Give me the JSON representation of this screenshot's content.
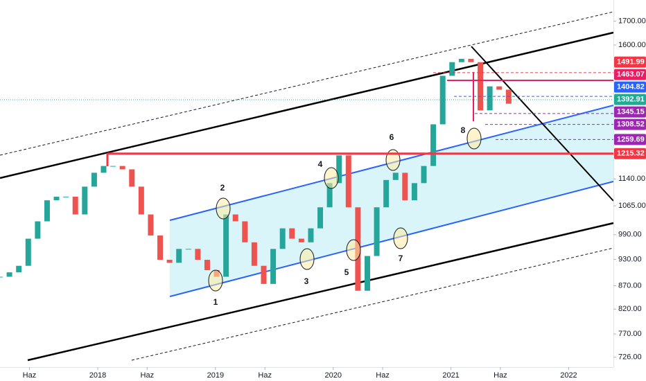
{
  "chart_data": {
    "type": "candlestick",
    "log_scale": true,
    "up_color": "#26a69a",
    "down_color": "#ef5350",
    "x": [
      2017.17,
      2017.25,
      2017.33,
      2017.41,
      2017.49,
      2017.57,
      2017.65,
      2017.73,
      2017.81,
      2017.89,
      2017.97,
      2018.05,
      2018.13,
      2018.21,
      2018.29,
      2018.37,
      2018.45,
      2018.53,
      2018.61,
      2018.69,
      2018.77,
      2018.85,
      2018.93,
      2019.01,
      2019.09,
      2019.17,
      2019.25,
      2019.33,
      2019.41,
      2019.49,
      2019.57,
      2019.65,
      2019.73,
      2019.81,
      2019.89,
      2019.97,
      2020.05,
      2020.13,
      2020.21,
      2020.29,
      2020.37,
      2020.45,
      2020.53,
      2020.61,
      2020.69,
      2020.77,
      2020.85,
      2020.93,
      2021.01,
      2021.09,
      2021.17,
      2021.25,
      2021.33,
      2021.41,
      2021.49
    ],
    "values": [
      890,
      900,
      915,
      980,
      1024,
      1080,
      1090,
      1090,
      1042,
      1118,
      1158,
      1178,
      1178,
      1168,
      1118,
      1042,
      988,
      929,
      922,
      955,
      955,
      929,
      905,
      890,
      1042,
      1024,
      971,
      915,
      874,
      955,
      1006,
      980,
      971,
      1006,
      1061,
      1128,
      1210,
      1061,
      859,
      938,
      1061,
      1137,
      1158,
      1080,
      1128,
      1178,
      1309,
      1480,
      1532,
      1545,
      1532,
      1356,
      1441,
      1429,
      1379
    ],
    "xlim": [
      2017.17,
      2022.38
    ],
    "ylim": [
      708,
      1793
    ],
    "xticks": [
      {
        "value": 2017.42,
        "label": "Haz"
      },
      2018,
      {
        "value": 2018.42,
        "label": "Haz"
      },
      2019,
      {
        "value": 2019.42,
        "label": "Haz"
      },
      2020,
      {
        "value": 2020.42,
        "label": "Haz"
      },
      2021,
      {
        "value": 2021.42,
        "label": "Haz"
      },
      2022
    ],
    "yticks": [
      {
        "value": 1700,
        "label": "1700.00"
      },
      {
        "value": 1600,
        "label": "1600.00"
      },
      {
        "value": 1140,
        "label": "1140.00"
      },
      {
        "value": 1065,
        "label": "1065.00"
      },
      {
        "value": 990,
        "label": "990.00"
      },
      {
        "value": 930,
        "label": "930.00"
      },
      {
        "value": 870,
        "label": "870.00"
      },
      {
        "value": 820,
        "label": "820.00"
      },
      {
        "value": 770,
        "label": "770.00"
      },
      {
        "value": 726,
        "label": "726.00"
      }
    ],
    "price_labels": [
      {
        "value": 1491.99,
        "color": "#f23645"
      },
      {
        "value": 1463.07,
        "color": "#e91e63"
      },
      {
        "value": 1404.82,
        "color": "#2962ff"
      },
      {
        "value": 1392.91,
        "color": "#22ab94"
      },
      {
        "value": 1345.15,
        "color": "#9c27b0"
      },
      {
        "value": 1308.52,
        "color": "#9c27b0"
      },
      {
        "value": 1259.69,
        "color": "#9c27b0"
      },
      {
        "value": 1215.32,
        "color": "#f23645"
      }
    ],
    "annotations": [
      "1",
      "2",
      "3",
      "4",
      "5",
      "6",
      "7",
      "8"
    ]
  }
}
